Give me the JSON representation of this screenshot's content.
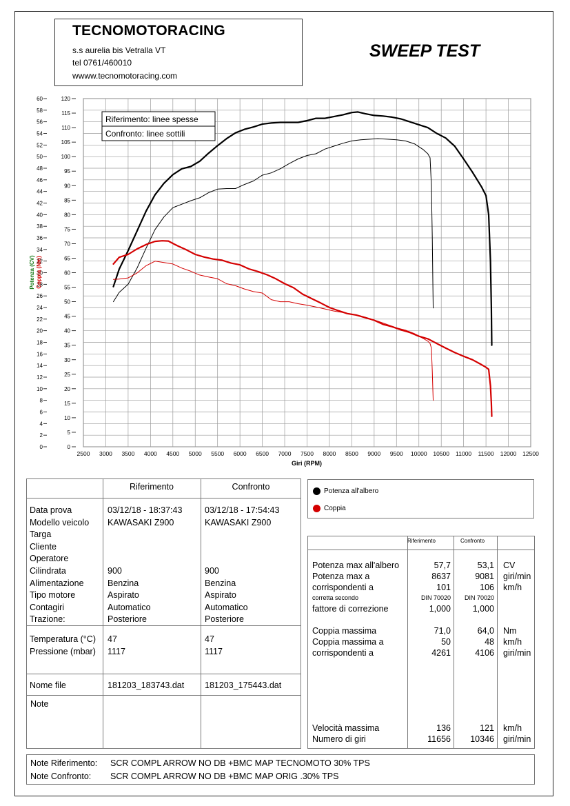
{
  "header": {
    "company": "TECNOMOTORACING",
    "address": "s.s aurelia bis  Vetralla  VT",
    "phone": "tel 0761/460010",
    "website": "wwww.tecnomotoracing.com",
    "test_title": "SWEEP TEST"
  },
  "chart_data": {
    "type": "line",
    "legend_notes": [
      "Riferimento: linee spesse",
      "Confronto: linee sottili"
    ],
    "xlabel": "Giri (RPM)",
    "ylabel_left_power": "Potenza (CV)",
    "ylabel_left_torque": "Coppia (Nm)",
    "xlim": [
      2500,
      12500
    ],
    "ylim_power": [
      0,
      60
    ],
    "ylim_torque": [
      0,
      120
    ],
    "grid": true,
    "x_ticks": [
      "2500",
      "3000",
      "3500",
      "4000",
      "4500",
      "5000",
      "5500",
      "6000",
      "6500",
      "7000",
      "7500",
      "8000",
      "8500",
      "9000",
      "9500",
      "10000",
      "10500",
      "11000",
      "11500",
      "12000",
      "12500"
    ],
    "power_ticks": [
      "0",
      "2",
      "4",
      "6",
      "8",
      "10",
      "12",
      "14",
      "16",
      "18",
      "20",
      "22",
      "24",
      "26",
      "28",
      "30",
      "32",
      "34",
      "36",
      "38",
      "40",
      "42",
      "44",
      "46",
      "48",
      "50",
      "52",
      "54",
      "56",
      "58",
      "60"
    ],
    "torque_ticks": [
      "0",
      "5",
      "10",
      "15",
      "20",
      "25",
      "30",
      "35",
      "40",
      "45",
      "50",
      "55",
      "60",
      "65",
      "70",
      "75",
      "80",
      "85",
      "90",
      "95",
      "100",
      "105",
      "110",
      "115",
      "120"
    ],
    "series": [
      {
        "id": "power_ref",
        "color": "#000000",
        "width": "thick",
        "x": [
          3170,
          3300,
          3500,
          3700,
          3900,
          4100,
          4300,
          4500,
          4700,
          4900,
          5100,
          5300,
          5500,
          5700,
          5900,
          6100,
          6300,
          6500,
          6700,
          6900,
          7100,
          7300,
          7500,
          7700,
          7900,
          8100,
          8300,
          8500,
          8637,
          8800,
          9000,
          9200,
          9400,
          9600,
          9800,
          10000,
          10200,
          10400,
          10600,
          10800,
          11000,
          11200,
          11400,
          11500,
          11560,
          11600,
          11620,
          11630
        ],
        "y": [
          27.6,
          30.6,
          33.8,
          37.2,
          40.6,
          43.4,
          45.4,
          46.9,
          47.9,
          48.3,
          49.2,
          50.6,
          51.9,
          53.1,
          54.1,
          54.7,
          55.1,
          55.6,
          55.8,
          55.9,
          55.9,
          55.9,
          56.2,
          56.6,
          56.6,
          56.9,
          57.2,
          57.6,
          57.7,
          57.4,
          57.1,
          57.0,
          56.8,
          56.5,
          56.0,
          55.5,
          55.0,
          54.0,
          53.2,
          51.8,
          49.6,
          47.3,
          44.8,
          43.3,
          40.0,
          32.0,
          24.0,
          17.5
        ]
      },
      {
        "id": "power_conf",
        "color": "#000000",
        "width": "thin",
        "x": [
          3170,
          3300,
          3500,
          3700,
          3900,
          4100,
          4300,
          4500,
          4700,
          4900,
          5100,
          5300,
          5500,
          5700,
          5900,
          6100,
          6300,
          6500,
          6700,
          6900,
          7100,
          7300,
          7500,
          7700,
          7900,
          8100,
          8300,
          8500,
          8700,
          8900,
          9081,
          9300,
          9500,
          9700,
          9900,
          10100,
          10200,
          10250,
          10280,
          10300,
          10320
        ],
        "y": [
          25.0,
          26.6,
          28.0,
          30.8,
          34.2,
          37.4,
          39.6,
          41.2,
          41.8,
          42.4,
          42.9,
          43.8,
          44.4,
          44.5,
          44.5,
          45.2,
          45.8,
          46.8,
          47.2,
          47.9,
          48.8,
          49.6,
          50.2,
          50.5,
          51.3,
          51.8,
          52.3,
          52.7,
          52.9,
          53.0,
          53.1,
          53.0,
          52.9,
          52.7,
          52.2,
          51.2,
          50.5,
          49.8,
          45.0,
          36.0,
          23.9
        ]
      },
      {
        "id": "torque_ref",
        "color": "#d40000",
        "width": "thick",
        "x": [
          3170,
          3300,
          3500,
          3700,
          3900,
          4100,
          4261,
          4400,
          4600,
          4800,
          5000,
          5200,
          5400,
          5600,
          5800,
          6000,
          6200,
          6400,
          6600,
          6800,
          7000,
          7200,
          7400,
          7600,
          7800,
          8000,
          8200,
          8400,
          8600,
          8800,
          9000,
          9200,
          9400,
          9600,
          9800,
          10000,
          10200,
          10400,
          10600,
          10800,
          11000,
          11200,
          11400,
          11500,
          11560,
          11600,
          11620,
          11630
        ],
        "y": [
          63.0,
          65.3,
          66.3,
          68.2,
          69.7,
          70.8,
          71.0,
          70.9,
          69.3,
          67.9,
          66.3,
          65.4,
          64.7,
          64.3,
          63.3,
          62.7,
          61.3,
          60.4,
          59.3,
          57.9,
          56.2,
          54.8,
          52.6,
          51.1,
          49.6,
          48.0,
          46.9,
          45.9,
          45.4,
          44.5,
          43.6,
          42.2,
          41.4,
          40.3,
          39.4,
          38.1,
          37.2,
          35.6,
          34.0,
          32.5,
          31.2,
          30.0,
          28.3,
          27.4,
          26.7,
          21.0,
          15.0,
          10.5
        ]
      },
      {
        "id": "torque_conf",
        "color": "#d40000",
        "width": "thin",
        "x": [
          3170,
          3300,
          3500,
          3700,
          3900,
          4106,
          4300,
          4500,
          4700,
          4900,
          5100,
          5300,
          5500,
          5700,
          5900,
          6100,
          6300,
          6500,
          6700,
          6900,
          7100,
          7300,
          7500,
          7700,
          7900,
          8100,
          8300,
          8500,
          8700,
          8900,
          9100,
          9300,
          9500,
          9700,
          9900,
          10100,
          10200,
          10250,
          10280,
          10300,
          10320
        ],
        "y": [
          57.7,
          57.8,
          58.2,
          59.9,
          62.4,
          64.0,
          63.5,
          63.0,
          61.6,
          60.5,
          59.2,
          58.5,
          57.9,
          56.2,
          55.5,
          54.4,
          53.5,
          53.0,
          50.7,
          50.0,
          50.0,
          49.3,
          48.8,
          48.2,
          47.5,
          46.8,
          46.3,
          45.7,
          45.1,
          44.2,
          43.2,
          42.1,
          41.0,
          40.2,
          39.0,
          37.3,
          36.4,
          35.6,
          34.0,
          26.0,
          16.0
        ]
      }
    ],
    "legend": [
      {
        "label": "Potenza all'albero",
        "color": "#000000"
      },
      {
        "label": "Coppia",
        "color": "#d40000"
      }
    ]
  },
  "info_table": {
    "col_ref": "Riferimento",
    "col_conf": "Confronto",
    "labels_main": [
      "Data prova",
      "Modello veicolo",
      "Targa",
      "Cliente",
      "Operatore",
      "Cilindrata",
      "Alimentazione",
      "Tipo motore",
      "Contagiri",
      "Trazione:"
    ],
    "ref": {
      "data": "03/12/18 - 18:37:43",
      "modello": "KAWASAKI Z900",
      "cilindrata": "900",
      "alimentazione": "Benzina",
      "tipo_motore": "Aspirato",
      "contagiri": "Automatico",
      "trazione": "Posteriore",
      "temperatura": "47",
      "pressione": "1117",
      "nome_file": "181203_183743.dat"
    },
    "conf": {
      "data": "03/12/18 - 17:54:43",
      "modello": "KAWASAKI Z900",
      "cilindrata": "900",
      "alimentazione": "Benzina",
      "tipo_motore": "Aspirato",
      "contagiri": "Automatico",
      "trazione": "Posteriore",
      "temperatura": "47",
      "pressione": "1117",
      "nome_file": "181203_175443.dat"
    },
    "label_temperatura": "Temperatura (°C)",
    "label_pressione": "Pressione (mbar)",
    "label_nome_file": "Nome file",
    "label_note": "Note"
  },
  "results": {
    "col_ref": "Riferimento",
    "col_conf": "Confronto",
    "rows_power": [
      {
        "label": "Potenza max all'albero",
        "ref": "57,7",
        "conf": "53,1",
        "unit": "CV"
      },
      {
        "label": "Potenza max a",
        "ref": "8637",
        "conf": "9081",
        "unit": "giri/min"
      },
      {
        "label": "corrispondenti a",
        "ref": "101",
        "conf": "106",
        "unit": "km/h"
      },
      {
        "label": "corretta secondo",
        "ref": "DIN 70020",
        "conf": "DIN 70020",
        "unit": ""
      },
      {
        "label": "fattore di correzione",
        "ref": "1,000",
        "conf": "1,000",
        "unit": ""
      }
    ],
    "rows_torque": [
      {
        "label": "Coppia massima",
        "ref": "71,0",
        "conf": "64,0",
        "unit": "Nm"
      },
      {
        "label": "Coppia massima a",
        "ref": "50",
        "conf": "48",
        "unit": "km/h"
      },
      {
        "label": "corrispondenti a",
        "ref": "4261",
        "conf": "4106",
        "unit": "giri/min"
      }
    ],
    "rows_speed": [
      {
        "label": "Velocità massima",
        "ref": "136",
        "conf": "121",
        "unit": "km/h"
      },
      {
        "label": "Numero di giri",
        "ref": "11656",
        "conf": "10346",
        "unit": "giri/min"
      }
    ]
  },
  "notes": {
    "rif_label": "Note Riferimento:",
    "rif_text": "SCR COMPL ARROW NO DB +BMC MAP TECNOMOTO 30% TPS",
    "conf_label": "Note Confronto:",
    "conf_text": "SCR COMPL ARROW NO DB +BMC MAP ORIG .30% TPS"
  }
}
